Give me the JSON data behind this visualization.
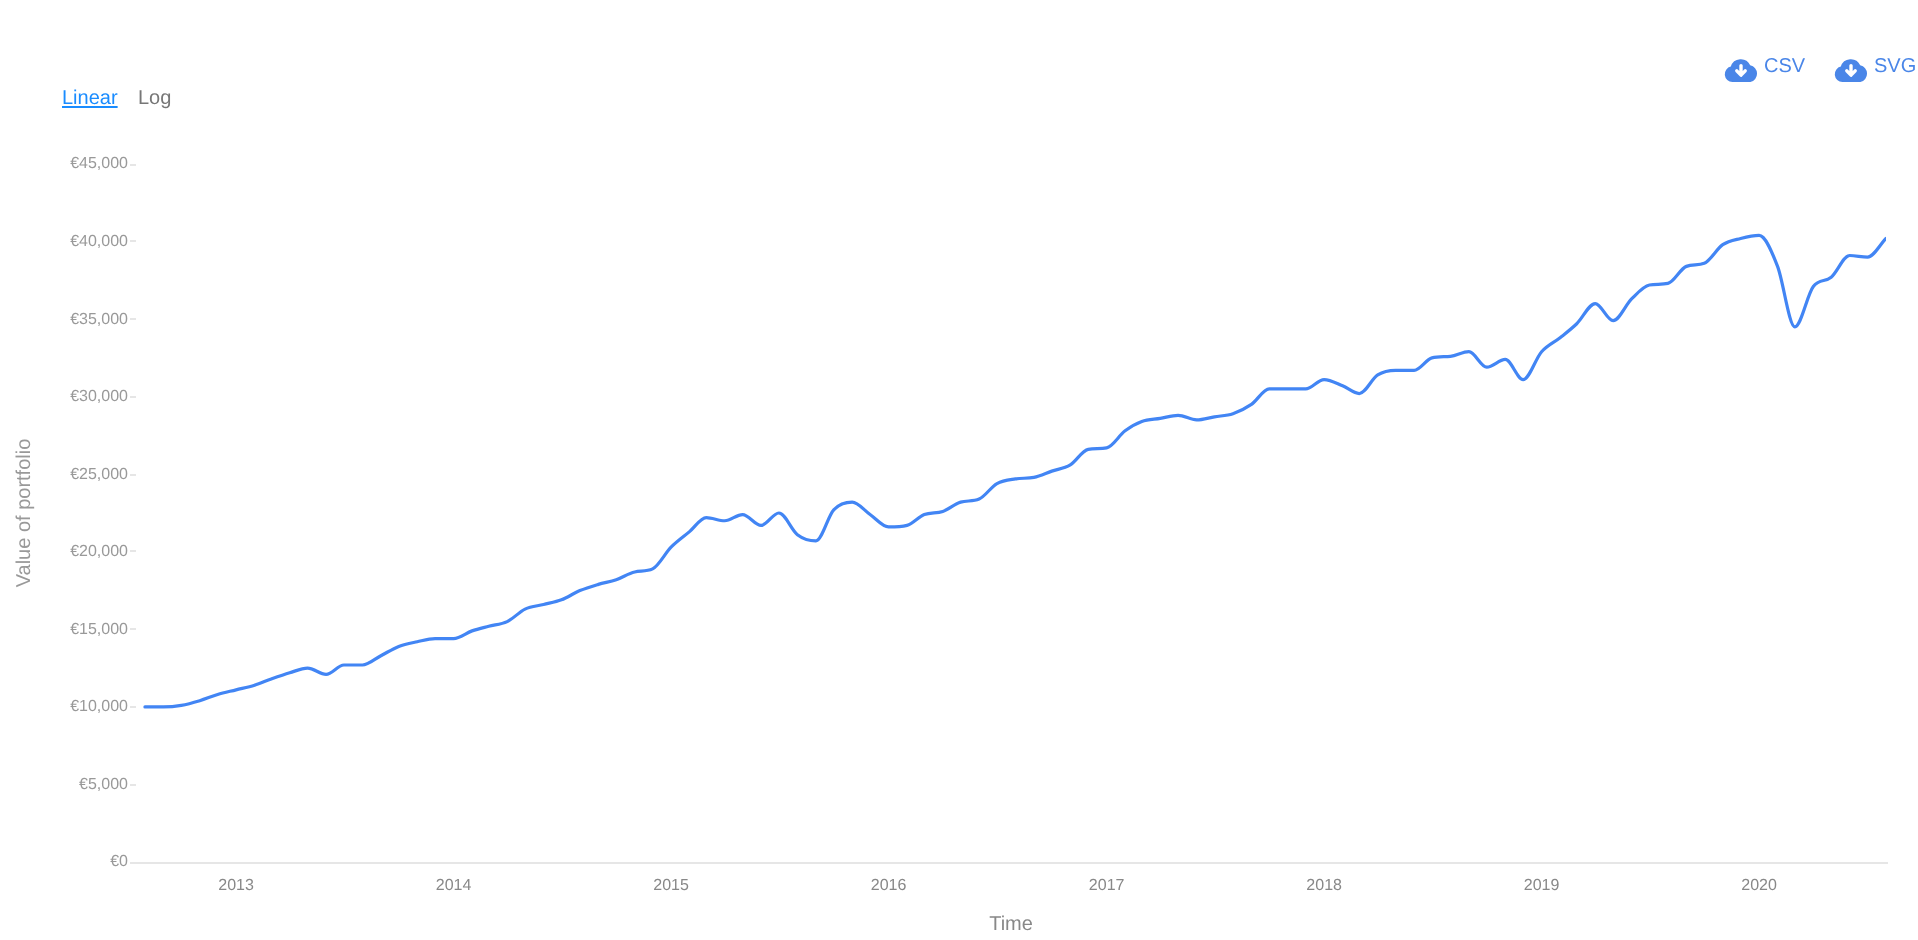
{
  "chart_data": {
    "type": "line",
    "xlabel": "Time",
    "ylabel": "Value of portfolio",
    "annotations": [
      "Linear",
      "Log",
      "CSV",
      "SVG"
    ],
    "x": [
      "2012-08",
      "2012-09",
      "2012-10",
      "2012-11",
      "2012-12",
      "2013-01",
      "2013-02",
      "2013-03",
      "2013-04",
      "2013-05",
      "2013-06",
      "2013-07",
      "2013-08",
      "2013-09",
      "2013-10",
      "2013-11",
      "2013-12",
      "2014-01",
      "2014-02",
      "2014-03",
      "2014-04",
      "2014-05",
      "2014-06",
      "2014-07",
      "2014-08",
      "2014-09",
      "2014-10",
      "2014-11",
      "2014-12",
      "2015-01",
      "2015-02",
      "2015-03",
      "2015-04",
      "2015-05",
      "2015-06",
      "2015-07",
      "2015-08",
      "2015-09",
      "2015-10",
      "2015-11",
      "2015-12",
      "2016-01",
      "2016-02",
      "2016-03",
      "2016-04",
      "2016-05",
      "2016-06",
      "2016-07",
      "2016-08",
      "2016-09",
      "2016-10",
      "2016-11",
      "2016-12",
      "2017-01",
      "2017-02",
      "2017-03",
      "2017-04",
      "2017-05",
      "2017-06",
      "2017-07",
      "2017-08",
      "2017-09",
      "2017-10",
      "2017-11",
      "2017-12",
      "2018-01",
      "2018-02",
      "2018-03",
      "2018-04",
      "2018-05",
      "2018-06",
      "2018-07",
      "2018-08",
      "2018-09",
      "2018-10",
      "2018-11",
      "2018-12",
      "2019-01",
      "2019-02",
      "2019-03",
      "2019-04",
      "2019-05",
      "2019-06",
      "2019-07",
      "2019-08",
      "2019-09",
      "2019-10",
      "2019-11",
      "2019-12",
      "2020-01",
      "2020-02",
      "2020-03",
      "2020-04",
      "2020-05",
      "2020-06",
      "2020-07",
      "2020-08"
    ],
    "series": [
      {
        "color": "#4285f4",
        "values": [
          10000,
          10000,
          10100,
          10400,
          10800,
          11100,
          11400,
          11800,
          12200,
          12500,
          12100,
          12700,
          12700,
          13300,
          13900,
          14200,
          14400,
          14400,
          14900,
          15200,
          15500,
          16300,
          16600,
          16900,
          17500,
          17900,
          18200,
          18700,
          18900,
          20300,
          21300,
          22200,
          22000,
          22400,
          21700,
          22500,
          21100,
          20700,
          22700,
          23200,
          22400,
          21600,
          21700,
          22400,
          22600,
          23200,
          23400,
          24400,
          24700,
          24800,
          25200,
          25600,
          26600,
          26700,
          27800,
          28400,
          28600,
          28800,
          28500,
          28700,
          28900,
          29500,
          30500,
          30500,
          30500,
          31100,
          30700,
          30200,
          31400,
          31700,
          31700,
          32500,
          32600,
          32900,
          31900,
          32400,
          31100,
          32900,
          33800,
          34700,
          36000,
          34900,
          36300,
          37200,
          37300,
          38400,
          38600,
          39800,
          40200,
          40400,
          38400,
          34500,
          37100,
          37700,
          39100,
          39000,
          40200
        ]
      }
    ],
    "xlim": [
      "2012-07-17",
      "2020-08"
    ],
    "xticks": [
      "2013",
      "2014",
      "2015",
      "2016",
      "2017",
      "2018",
      "2019",
      "2020"
    ],
    "ylim": [
      0,
      45000
    ],
    "yticks": [
      {
        "value": 0,
        "label": "€0"
      },
      {
        "value": 5000,
        "label": "€5,000"
      },
      {
        "value": 10000,
        "label": "€10,000"
      },
      {
        "value": 15000,
        "label": "€15,000"
      },
      {
        "value": 20000,
        "label": "€20,000"
      },
      {
        "value": 25000,
        "label": "€25,000"
      },
      {
        "value": 30000,
        "label": "€30,000"
      },
      {
        "value": 35000,
        "label": "€35,000"
      },
      {
        "value": 40000,
        "label": "€40,000"
      },
      {
        "value": 45000,
        "label": "€45,000"
      }
    ]
  }
}
